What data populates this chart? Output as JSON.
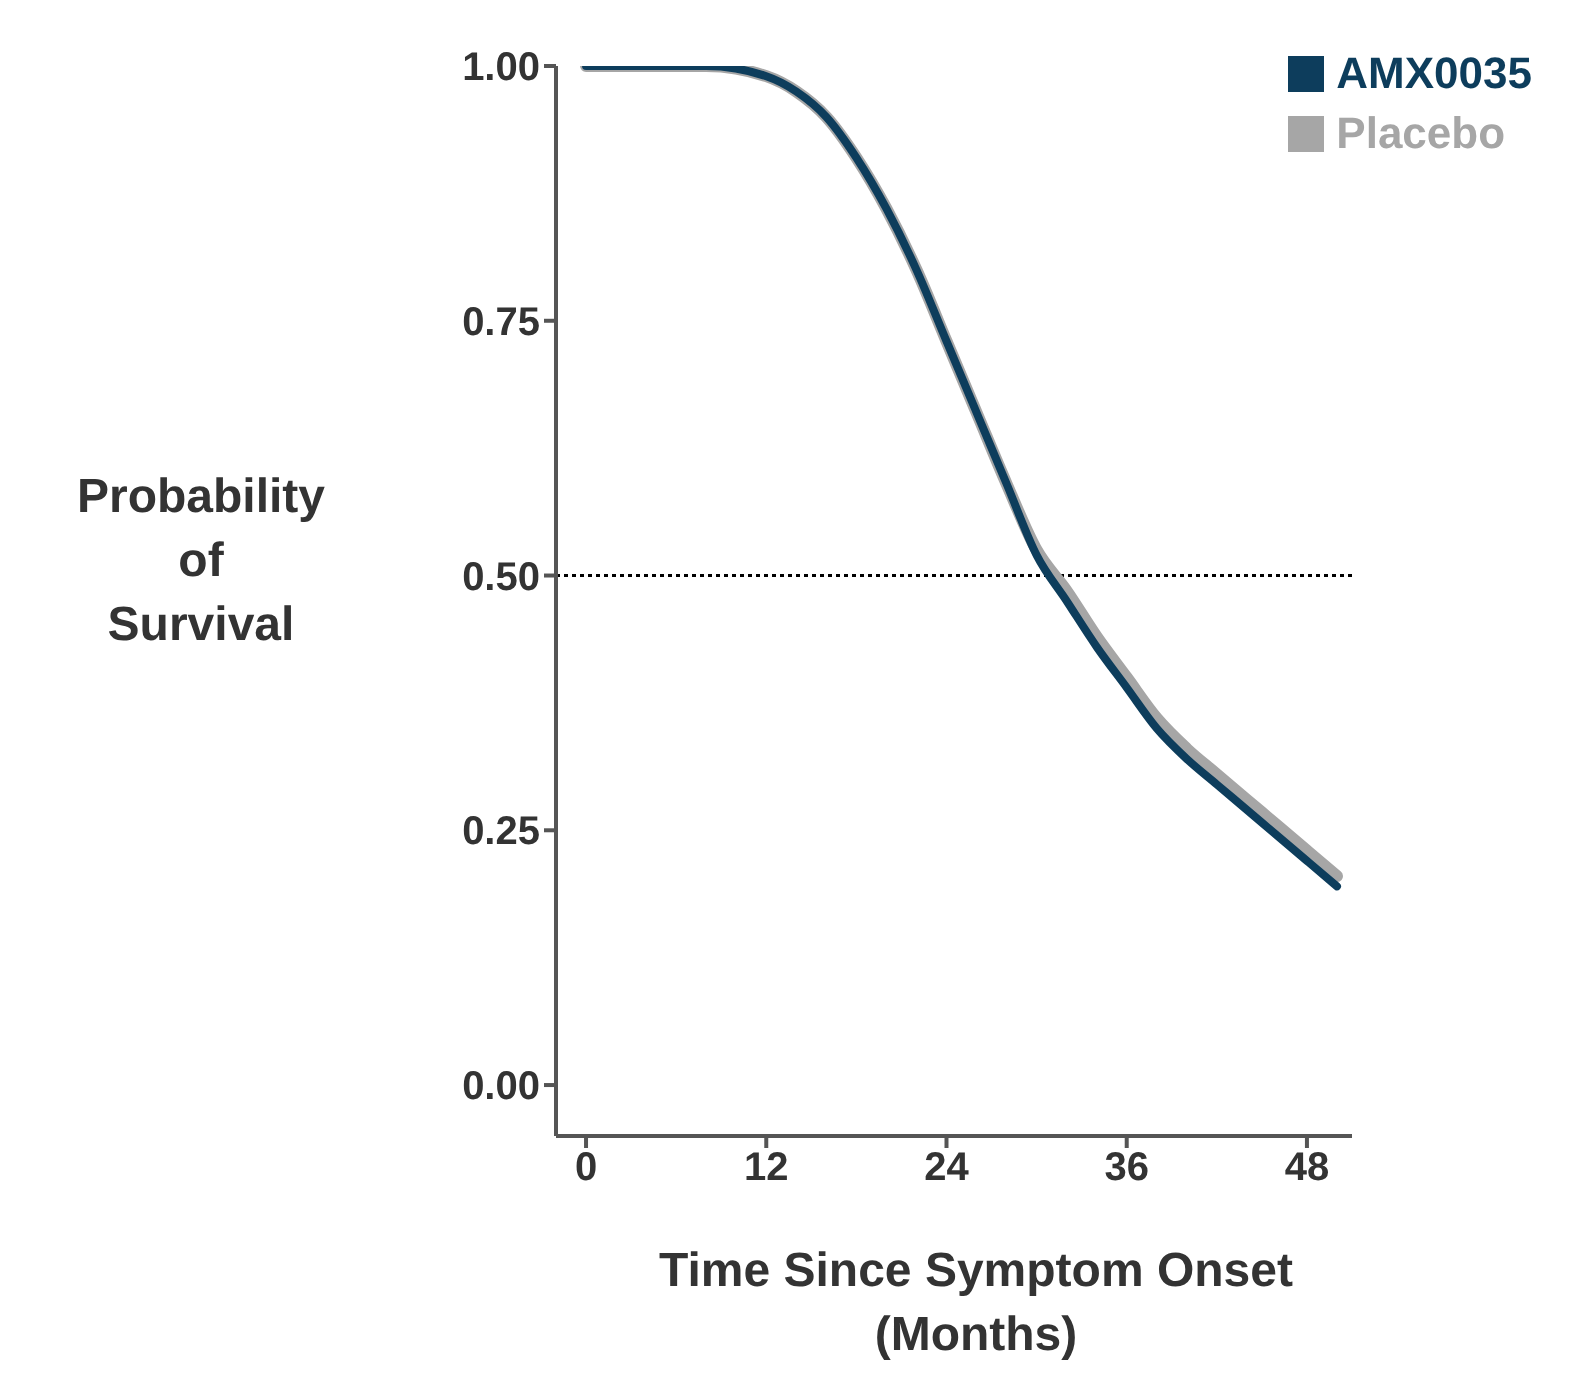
{
  "chart_data": {
    "type": "line",
    "xlabel": "Time Since Symptom Onset (Months)",
    "ylabel": "Probability of Survival",
    "xlim": [
      -2,
      51
    ],
    "xticks": [
      0,
      12,
      24,
      36,
      48
    ],
    "ylim": [
      -0.05,
      1.0
    ],
    "yticks": [
      {
        "value": 0,
        "label": "0.00"
      },
      {
        "value": 0.25,
        "label": "0.25"
      },
      {
        "value": 0.5,
        "label": "0.50"
      },
      {
        "value": 0.75,
        "label": "0.75"
      },
      {
        "value": 1,
        "label": "1.00"
      }
    ],
    "x": [
      0,
      8,
      12,
      14,
      16,
      18,
      20,
      22,
      24,
      26,
      28,
      30,
      32,
      34,
      36,
      38,
      40,
      42,
      44,
      46,
      48,
      50
    ],
    "series": [
      {
        "name": "Placebo",
        "color": "#a6a6a6",
        "values": [
          1,
          1,
          0.99,
          0.975,
          0.95,
          0.91,
          0.86,
          0.8,
          0.73,
          0.66,
          0.59,
          0.525,
          0.485,
          0.44,
          0.4,
          0.36,
          0.33,
          0.305,
          0.28,
          0.255,
          0.23,
          0.205
        ]
      },
      {
        "name": "AMX0035",
        "color": "#0d3d5c",
        "values": [
          1,
          1,
          0.99,
          0.975,
          0.95,
          0.91,
          0.86,
          0.8,
          0.73,
          0.66,
          0.59,
          0.52,
          0.475,
          0.43,
          0.39,
          0.35,
          0.32,
          0.295,
          0.27,
          0.245,
          0.22,
          0.195
        ]
      }
    ],
    "ref_lines": [
      {
        "axis": "y",
        "value": 0.5,
        "color": "#000000",
        "line_style": "dotted"
      }
    ],
    "legend": "top right",
    "grid": false,
    "marker": "none",
    "line_style": "solid"
  }
}
